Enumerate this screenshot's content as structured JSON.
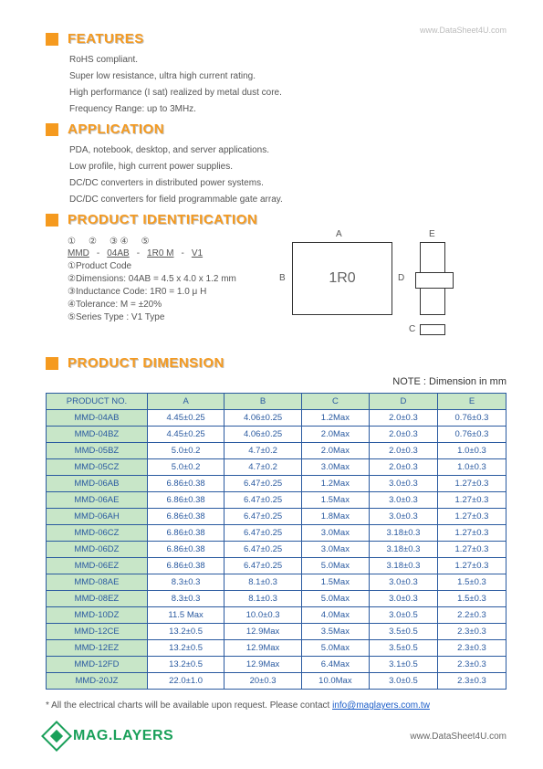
{
  "watermark": "www.DataSheet4U.com",
  "sections": {
    "features": {
      "title": "FEATURES",
      "lines": [
        "RoHS compliant.",
        "Super low resistance, ultra high current rating.",
        "High performance (I sat) realized by metal dust core.",
        "Frequency Range: up to 3MHz."
      ]
    },
    "application": {
      "title": "APPLICATION",
      "lines": [
        "PDA, notebook, desktop, and server applications.",
        "Low profile, high current power supplies.",
        "DC/DC converters in distributed power systems.",
        "DC/DC converters for field programmable gate array."
      ]
    },
    "pid": {
      "title": "PRODUCT IDENTIFICATION",
      "circles": [
        "①",
        "②",
        "③ ④",
        "⑤"
      ],
      "parts": [
        "MMD",
        "-",
        "04AB",
        "-",
        "1R0 M",
        "-",
        "V1"
      ],
      "items": [
        "①Product Code",
        "②Dimensions: 04AB = 4.5 x 4.0 x 1.2 mm",
        "③Inductance Code: 1R0 = 1.0 μ H",
        "④Tolerance: M = ±20%",
        "⑤Series Type : V1 Type"
      ],
      "diag_text": "1R0",
      "labels": {
        "A": "A",
        "B": "B",
        "C": "C",
        "D": "D",
        "E": "E"
      }
    },
    "dimension": {
      "title": "PRODUCT DIMENSION",
      "note": "NOTE  :  Dimension in mm",
      "headers": [
        "PRODUCT NO.",
        "A",
        "B",
        "C",
        "D",
        "E"
      ],
      "rows": [
        [
          "MMD-04AB",
          "4.45±0.25",
          "4.06±0.25",
          "1.2Max",
          "2.0±0.3",
          "0.76±0.3"
        ],
        [
          "MMD-04BZ",
          "4.45±0.25",
          "4.06±0.25",
          "2.0Max",
          "2.0±0.3",
          "0.76±0.3"
        ],
        [
          "MMD-05BZ",
          "5.0±0.2",
          "4.7±0.2",
          "2.0Max",
          "2.0±0.3",
          "1.0±0.3"
        ],
        [
          "MMD-05CZ",
          "5.0±0.2",
          "4.7±0.2",
          "3.0Max",
          "2.0±0.3",
          "1.0±0.3"
        ],
        [
          "MMD-06AB",
          "6.86±0.38",
          "6.47±0.25",
          "1.2Max",
          "3.0±0.3",
          "1.27±0.3"
        ],
        [
          "MMD-06AE",
          "6.86±0.38",
          "6.47±0.25",
          "1.5Max",
          "3.0±0.3",
          "1.27±0.3"
        ],
        [
          "MMD-06AH",
          "6.86±0.38",
          "6.47±0.25",
          "1.8Max",
          "3.0±0.3",
          "1.27±0.3"
        ],
        [
          "MMD-06CZ",
          "6.86±0.38",
          "6.47±0.25",
          "3.0Max",
          "3.18±0.3",
          "1.27±0.3"
        ],
        [
          "MMD-06DZ",
          "6.86±0.38",
          "6.47±0.25",
          "3.0Max",
          "3.18±0.3",
          "1.27±0.3"
        ],
        [
          "MMD-06EZ",
          "6.86±0.38",
          "6.47±0.25",
          "5.0Max",
          "3.18±0.3",
          "1.27±0.3"
        ],
        [
          "MMD-08AE",
          "8.3±0.3",
          "8.1±0.3",
          "1.5Max",
          "3.0±0.3",
          "1.5±0.3"
        ],
        [
          "MMD-08EZ",
          "8.3±0.3",
          "8.1±0.3",
          "5.0Max",
          "3.0±0.3",
          "1.5±0.3"
        ],
        [
          "MMD-10DZ",
          "11.5 Max",
          "10.0±0.3",
          "4.0Max",
          "3.0±0.5",
          "2.2±0.3"
        ],
        [
          "MMD-12CE",
          "13.2±0.5",
          "12.9Max",
          "3.5Max",
          "3.5±0.5",
          "2.3±0.3"
        ],
        [
          "MMD-12EZ",
          "13.2±0.5",
          "12.9Max",
          "5.0Max",
          "3.5±0.5",
          "2.3±0.3"
        ],
        [
          "MMD-12FD",
          "13.2±0.5",
          "12.9Max",
          "6.4Max",
          "3.1±0.5",
          "2.3±0.3"
        ],
        [
          "MMD-20JZ",
          "22.0±1.0",
          "20±0.3",
          "10.0Max",
          "3.0±0.5",
          "2.3±0.3"
        ]
      ]
    }
  },
  "footnote_prefix": "* All the electrical charts will be available upon request.    Please contact ",
  "footnote_link": "info@maglayers.com.tw",
  "logo_text": "MAG.LAYERS",
  "ds4u": "www.DataSheet4U.com",
  "colors": {
    "accent": "#f59a1f",
    "table_border": "#2a5aa0",
    "table_bg": "#c8e6c8",
    "logo": "#1aa05a"
  }
}
